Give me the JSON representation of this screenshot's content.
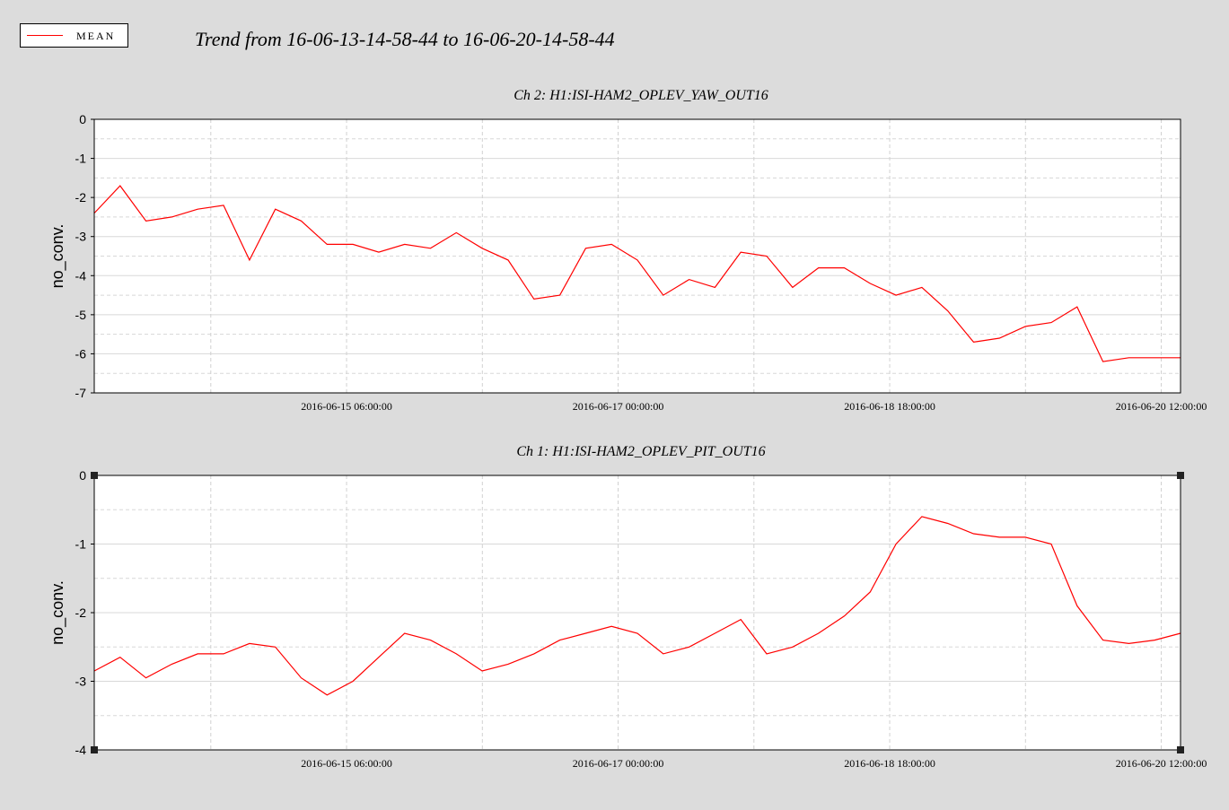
{
  "title": "Trend from 16-06-13-14-58-44 to 16-06-20-14-58-44",
  "legend": {
    "label": "MEAN",
    "color": "#ff0000",
    "text_color": "#0000ff"
  },
  "chart_data": [
    {
      "type": "line",
      "title": "Ch 2: H1:ISI-HAM2_OPLEV_YAW_OUT16",
      "y_label": "no_conv.",
      "color": "#ff0000",
      "grid": true,
      "xlim": [
        "2016-06-13 14:58:44",
        "2016-06-20 14:58:44"
      ],
      "xticks": [
        "2016-06-15 06:00:00",
        "2016-06-17 00:00:00",
        "2016-06-18 18:00:00",
        "2016-06-20 12:00:00"
      ],
      "ylim": [
        -7,
        0
      ],
      "yticks": [
        0,
        -1,
        -2,
        -3,
        -4,
        -5,
        -6,
        -7
      ],
      "x": [
        "2016-06-13 14:58:44",
        "2016-06-13 18:58:44",
        "2016-06-13 22:58:44",
        "2016-06-14 02:58:44",
        "2016-06-14 06:58:44",
        "2016-06-14 10:58:44",
        "2016-06-14 14:58:44",
        "2016-06-14 18:58:44",
        "2016-06-14 22:58:44",
        "2016-06-15 02:58:44",
        "2016-06-15 06:58:44",
        "2016-06-15 10:58:44",
        "2016-06-15 14:58:44",
        "2016-06-15 18:58:44",
        "2016-06-15 22:58:44",
        "2016-06-16 02:58:44",
        "2016-06-16 06:58:44",
        "2016-06-16 10:58:44",
        "2016-06-16 14:58:44",
        "2016-06-16 18:58:44",
        "2016-06-16 22:58:44",
        "2016-06-17 02:58:44",
        "2016-06-17 06:58:44",
        "2016-06-17 10:58:44",
        "2016-06-17 14:58:44",
        "2016-06-17 18:58:44",
        "2016-06-17 22:58:44",
        "2016-06-18 02:58:44",
        "2016-06-18 06:58:44",
        "2016-06-18 10:58:44",
        "2016-06-18 14:58:44",
        "2016-06-18 18:58:44",
        "2016-06-18 22:58:44",
        "2016-06-19 02:58:44",
        "2016-06-19 06:58:44",
        "2016-06-19 10:58:44",
        "2016-06-19 14:58:44",
        "2016-06-19 18:58:44",
        "2016-06-19 22:58:44",
        "2016-06-20 02:58:44",
        "2016-06-20 06:58:44",
        "2016-06-20 10:58:44",
        "2016-06-20 14:58:44"
      ],
      "values": [
        -2.4,
        -1.7,
        -2.6,
        -2.5,
        -2.3,
        -2.2,
        -3.6,
        -2.3,
        -2.6,
        -3.2,
        -3.2,
        -3.4,
        -3.2,
        -3.3,
        -2.9,
        -3.3,
        -3.6,
        -4.6,
        -4.5,
        -3.3,
        -3.2,
        -3.6,
        -4.5,
        -4.1,
        -4.3,
        -3.4,
        -3.5,
        -4.3,
        -3.8,
        -3.8,
        -4.2,
        -4.5,
        -4.3,
        -4.9,
        -5.7,
        -5.6,
        -5.3,
        -5.2,
        -4.8,
        -6.2,
        -6.1,
        -6.1,
        -6.1
      ]
    },
    {
      "type": "line",
      "title": "Ch 1: H1:ISI-HAM2_OPLEV_PIT_OUT16",
      "y_label": "no_conv.",
      "color": "#ff0000",
      "grid": true,
      "xlim": [
        "2016-06-13 14:58:44",
        "2016-06-20 14:58:44"
      ],
      "xticks": [
        "2016-06-15 06:00:00",
        "2016-06-17 00:00:00",
        "2016-06-18 18:00:00",
        "2016-06-20 12:00:00"
      ],
      "ylim": [
        -4,
        0
      ],
      "yticks": [
        0,
        -1,
        -2,
        -3,
        -4
      ],
      "x": [
        "2016-06-13 14:58:44",
        "2016-06-13 18:58:44",
        "2016-06-13 22:58:44",
        "2016-06-14 02:58:44",
        "2016-06-14 06:58:44",
        "2016-06-14 10:58:44",
        "2016-06-14 14:58:44",
        "2016-06-14 18:58:44",
        "2016-06-14 22:58:44",
        "2016-06-15 02:58:44",
        "2016-06-15 06:58:44",
        "2016-06-15 10:58:44",
        "2016-06-15 14:58:44",
        "2016-06-15 18:58:44",
        "2016-06-15 22:58:44",
        "2016-06-16 02:58:44",
        "2016-06-16 06:58:44",
        "2016-06-16 10:58:44",
        "2016-06-16 14:58:44",
        "2016-06-16 18:58:44",
        "2016-06-16 22:58:44",
        "2016-06-17 02:58:44",
        "2016-06-17 06:58:44",
        "2016-06-17 10:58:44",
        "2016-06-17 14:58:44",
        "2016-06-17 18:58:44",
        "2016-06-17 22:58:44",
        "2016-06-18 02:58:44",
        "2016-06-18 06:58:44",
        "2016-06-18 10:58:44",
        "2016-06-18 14:58:44",
        "2016-06-18 18:58:44",
        "2016-06-18 22:58:44",
        "2016-06-19 02:58:44",
        "2016-06-19 06:58:44",
        "2016-06-19 10:58:44",
        "2016-06-19 14:58:44",
        "2016-06-19 18:58:44",
        "2016-06-19 22:58:44",
        "2016-06-20 02:58:44",
        "2016-06-20 06:58:44",
        "2016-06-20 10:58:44",
        "2016-06-20 14:58:44"
      ],
      "values": [
        -2.85,
        -2.65,
        -2.95,
        -2.75,
        -2.6,
        -2.6,
        -2.45,
        -2.5,
        -2.95,
        -3.2,
        -3.0,
        -2.65,
        -2.3,
        -2.4,
        -2.6,
        -2.85,
        -2.75,
        -2.6,
        -2.4,
        -2.3,
        -2.2,
        -2.3,
        -2.6,
        -2.5,
        -2.3,
        -2.1,
        -2.6,
        -2.5,
        -2.3,
        -2.05,
        -1.7,
        -1.0,
        -0.6,
        -0.7,
        -0.85,
        -0.9,
        -0.9,
        -1.0,
        -1.9,
        -2.4,
        -2.45,
        -2.4,
        -2.3
      ]
    }
  ]
}
